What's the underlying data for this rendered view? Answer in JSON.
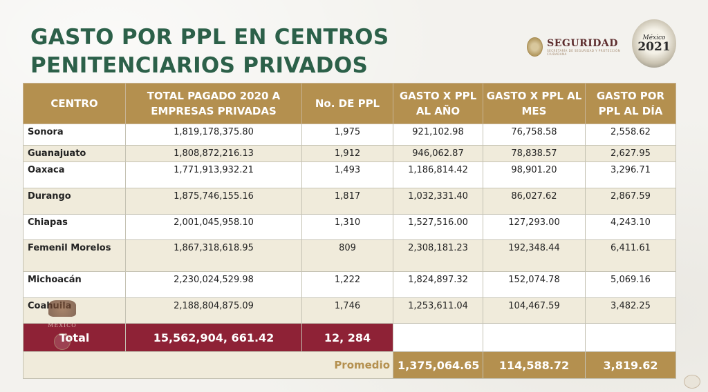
{
  "title": {
    "line1": "GASTO POR PPL EN CENTROS",
    "line2": "PENITENCIARIOS PRIVADOS"
  },
  "logo_seguridad": {
    "name": "SEGURIDAD",
    "subtitle": "SECRETARÍA DE SEGURIDAD Y PROTECCIÓN CIUDADANA"
  },
  "logo_mexico": {
    "label": "México",
    "year": "2021"
  },
  "watermark": {
    "text": "MÉXICO"
  },
  "table": {
    "headers": [
      "CENTRO",
      "TOTAL PAGADO 2020 A EMPRESAS PRIVADAS",
      "No. DE PPL",
      "GASTO X PPL AL AÑO",
      "GASTO X PPL AL MES",
      "GASTO POR PPL AL DÍA"
    ],
    "rows": [
      [
        "Sonora",
        "1,819,178,375.80",
        "1,975",
        "921,102.98",
        "76,758.58",
        "2,558.62"
      ],
      [
        "Guanajuato",
        "1,808,872,216.13",
        "1,912",
        "946,062.87",
        "78,838.57",
        "2,627.95"
      ],
      [
        "Oaxaca",
        "1,771,913,932.21",
        "1,493",
        "1,186,814.42",
        "98,901.20",
        "3,296.71"
      ],
      [
        "Durango",
        "1,875,746,155.16",
        "1,817",
        "1,032,331.40",
        "86,027.62",
        "2,867.59"
      ],
      [
        "Chiapas",
        "2,001,045,958.10",
        "1,310",
        "1,527,516.00",
        "127,293.00",
        "4,243.10"
      ],
      [
        "Femenil Morelos",
        "1,867,318,618.95",
        "809",
        "2,308,181.23",
        "192,348.44",
        "6,411.61"
      ],
      [
        "Michoacán",
        "2,230,024,529.98",
        "1,222",
        "1,824,897.32",
        "152,074.78",
        "5,069.16"
      ],
      [
        "Coahuila",
        "2,188,804,875.09",
        "1,746",
        "1,253,611.04",
        "104,467.59",
        "3,482.25"
      ]
    ],
    "total": {
      "label": "Total",
      "amount": "15,562,904, 661.42",
      "ppl": "12, 284"
    },
    "average": {
      "label": "Promedio",
      "year": "1,375,064.65",
      "month": "114,588.72",
      "day": "3,819.62"
    }
  },
  "colors": {
    "title_green": "#2c6049",
    "header_gold": "#b4904f",
    "total_maroon": "#8e2236",
    "row_alt": "#f0ebdb"
  }
}
